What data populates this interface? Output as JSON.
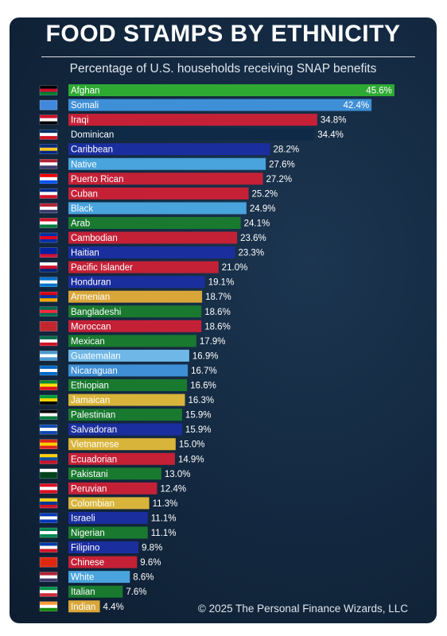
{
  "chart_data": {
    "type": "bar",
    "orientation": "horizontal",
    "title": "FOOD STAMPS BY ETHNICITY",
    "subtitle": "Percentage of U.S. households receiving SNAP benefits",
    "unit": "%",
    "xlim": [
      0,
      46.5
    ],
    "grid": false,
    "legend": "none",
    "bars": [
      {
        "label": "Afghan",
        "value": 45.6,
        "display": "45.6%",
        "color": "#2eaa33",
        "flag": [
          "#000000",
          "#c8102e",
          "#007a36"
        ]
      },
      {
        "label": "Somali",
        "value": 42.4,
        "display": "42.4%",
        "color": "#3f8fd6",
        "flag": [
          "#4189dd",
          "#4189dd",
          "#4189dd"
        ]
      },
      {
        "label": "Iraqi",
        "value": 34.8,
        "display": "34.8%",
        "color": "#c42137",
        "flag": [
          "#ce1126",
          "#ffffff",
          "#000000"
        ]
      },
      {
        "label": "Dominican",
        "value": 34.4,
        "display": "34.4%",
        "color": "#0f2a46",
        "flag": [
          "#002d62",
          "#ffffff",
          "#ce1126"
        ]
      },
      {
        "label": "Caribbean",
        "value": 28.2,
        "display": "28.2%",
        "color": "#1b2e9e",
        "flag": [
          "#00267f",
          "#ffc726",
          "#00267f"
        ]
      },
      {
        "label": "Native",
        "value": 27.6,
        "display": "27.6%",
        "color": "#49a3dc",
        "flag": [
          "#b22234",
          "#ffffff",
          "#3c3b6e"
        ]
      },
      {
        "label": "Puerto Rican",
        "value": 27.2,
        "display": "27.2%",
        "color": "#c42137",
        "flag": [
          "#ed0000",
          "#ffffff",
          "#0050f0"
        ]
      },
      {
        "label": "Cuban",
        "value": 25.2,
        "display": "25.2%",
        "color": "#c42137",
        "flag": [
          "#002a8f",
          "#ffffff",
          "#cf142b"
        ]
      },
      {
        "label": "Black",
        "value": 24.9,
        "display": "24.9%",
        "color": "#49a3dc",
        "flag": [
          "#b22234",
          "#ffffff",
          "#3c3b6e"
        ]
      },
      {
        "label": "Arab",
        "value": 24.1,
        "display": "24.1%",
        "color": "#19792f",
        "flag": [
          "#ce1126",
          "#ffffff",
          "#007a3d"
        ]
      },
      {
        "label": "Cambodian",
        "value": 23.6,
        "display": "23.6%",
        "color": "#c42137",
        "flag": [
          "#032ea1",
          "#e00025",
          "#032ea1"
        ]
      },
      {
        "label": "Haitian",
        "value": 23.3,
        "display": "23.3%",
        "color": "#1b2e9e",
        "flag": [
          "#00209f",
          "#00209f",
          "#d21034"
        ]
      },
      {
        "label": "Pacific Islander",
        "value": 21.0,
        "display": "21.0%",
        "color": "#c42137",
        "flag": [
          "#ffffff",
          "#c8102e",
          "#00247d"
        ]
      },
      {
        "label": "Honduran",
        "value": 19.1,
        "display": "19.1%",
        "color": "#1b2e9e",
        "flag": [
          "#0073cf",
          "#ffffff",
          "#0073cf"
        ]
      },
      {
        "label": "Armenian",
        "value": 18.7,
        "display": "18.7%",
        "color": "#d9a63a",
        "flag": [
          "#d90012",
          "#0033a0",
          "#f2a800"
        ]
      },
      {
        "label": "Bangladeshi",
        "value": 18.6,
        "display": "18.6%",
        "color": "#19792f",
        "flag": [
          "#006a4e",
          "#f42a41",
          "#006a4e"
        ]
      },
      {
        "label": "Moroccan",
        "value": 18.6,
        "display": "18.6%",
        "color": "#c42137",
        "flag": [
          "#c1272d",
          "#c1272d",
          "#c1272d"
        ]
      },
      {
        "label": "Mexican",
        "value": 17.9,
        "display": "17.9%",
        "color": "#19792f",
        "flag": [
          "#006847",
          "#ffffff",
          "#ce1126"
        ]
      },
      {
        "label": "Guatemalan",
        "value": 16.9,
        "display": "16.9%",
        "color": "#6fb7e6",
        "flag": [
          "#4997d0",
          "#ffffff",
          "#4997d0"
        ]
      },
      {
        "label": "Nicaraguan",
        "value": 16.7,
        "display": "16.7%",
        "color": "#3f8fd6",
        "flag": [
          "#0067c6",
          "#ffffff",
          "#0067c6"
        ]
      },
      {
        "label": "Ethiopian",
        "value": 16.6,
        "display": "16.6%",
        "color": "#19792f",
        "flag": [
          "#078930",
          "#fcdd09",
          "#da121a"
        ]
      },
      {
        "label": "Jamaican",
        "value": 16.3,
        "display": "16.3%",
        "color": "#d9b43a",
        "flag": [
          "#009b3a",
          "#fed100",
          "#000000"
        ]
      },
      {
        "label": "Palestinian",
        "value": 15.9,
        "display": "15.9%",
        "color": "#19792f",
        "flag": [
          "#000000",
          "#ffffff",
          "#007a3d"
        ]
      },
      {
        "label": "Salvadoran",
        "value": 15.9,
        "display": "15.9%",
        "color": "#1b2e9e",
        "flag": [
          "#0f47af",
          "#ffffff",
          "#0f47af"
        ]
      },
      {
        "label": "Vietnamese",
        "value": 15.0,
        "display": "15.0%",
        "color": "#d9b43a",
        "flag": [
          "#da251d",
          "#ffcd00",
          "#da251d"
        ]
      },
      {
        "label": "Ecuadorian",
        "value": 14.9,
        "display": "14.9%",
        "color": "#c42137",
        "flag": [
          "#ffd100",
          "#034ea2",
          "#ce1126"
        ]
      },
      {
        "label": "Pakistani",
        "value": 13.0,
        "display": "13.0%",
        "color": "#19792f",
        "flag": [
          "#ffffff",
          "#01411c",
          "#01411c"
        ]
      },
      {
        "label": "Peruvian",
        "value": 12.4,
        "display": "12.4%",
        "color": "#c42137",
        "flag": [
          "#d91023",
          "#ffffff",
          "#d91023"
        ]
      },
      {
        "label": "Colombian",
        "value": 11.3,
        "display": "11.3%",
        "color": "#d9b43a",
        "flag": [
          "#fcd116",
          "#003893",
          "#ce1126"
        ]
      },
      {
        "label": "Israeli",
        "value": 11.1,
        "display": "11.1%",
        "color": "#1b2e9e",
        "flag": [
          "#0038b8",
          "#ffffff",
          "#0038b8"
        ]
      },
      {
        "label": "Nigerian",
        "value": 11.1,
        "display": "11.1%",
        "color": "#19792f",
        "flag": [
          "#008751",
          "#ffffff",
          "#008751"
        ]
      },
      {
        "label": "Filipino",
        "value": 9.8,
        "display": "9.8%",
        "color": "#1b2e9e",
        "flag": [
          "#0038a8",
          "#ffffff",
          "#ce1126"
        ]
      },
      {
        "label": "Chinese",
        "value": 9.6,
        "display": "9.6%",
        "color": "#c42137",
        "flag": [
          "#de2910",
          "#de2910",
          "#de2910"
        ]
      },
      {
        "label": "White",
        "value": 8.6,
        "display": "8.6%",
        "color": "#49a3dc",
        "flag": [
          "#b22234",
          "#ffffff",
          "#3c3b6e"
        ]
      },
      {
        "label": "Italian",
        "value": 7.6,
        "display": "7.6%",
        "color": "#19792f",
        "flag": [
          "#009246",
          "#ffffff",
          "#ce2b37"
        ]
      },
      {
        "label": "Indian",
        "value": 4.4,
        "display": "4.4%",
        "color": "#d9a63a",
        "flag": [
          "#ff9933",
          "#ffffff",
          "#138808"
        ]
      }
    ]
  },
  "footer": "© 2025 The Personal Finance Wizards, LLC"
}
